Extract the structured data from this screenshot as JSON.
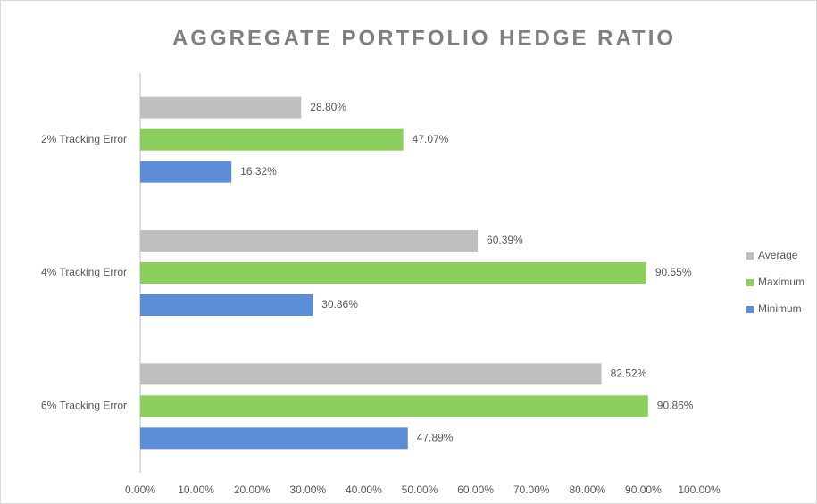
{
  "chart_data": {
    "type": "bar",
    "orientation": "horizontal",
    "title": "AGGREGATE PORTFOLIO HEDGE RATIO",
    "categories": [
      "2% Tracking Error",
      "4% Tracking Error",
      "6% Tracking Error"
    ],
    "series": [
      {
        "name": "Average",
        "color": "#bfbfbf",
        "values": [
          28.8,
          60.39,
          82.52
        ],
        "value_labels": [
          "28.80%",
          "60.39%",
          "82.52%"
        ]
      },
      {
        "name": "Maximum",
        "color": "#8ccf5c",
        "values": [
          47.07,
          90.55,
          90.86
        ],
        "value_labels": [
          "47.07%",
          "90.55%",
          "90.86%"
        ]
      },
      {
        "name": "Minimum",
        "color": "#5b8ed6",
        "values": [
          16.32,
          30.86,
          47.89
        ],
        "value_labels": [
          "16.32%",
          "30.86%",
          "47.89%"
        ]
      }
    ],
    "xlim": [
      0,
      100
    ],
    "xticks": [
      {
        "value": 0,
        "label": "0.00%"
      },
      {
        "value": 10,
        "label": "10.00%"
      },
      {
        "value": 20,
        "label": "20.00%"
      },
      {
        "value": 30,
        "label": "30.00%"
      },
      {
        "value": 40,
        "label": "40.00%"
      },
      {
        "value": 50,
        "label": "50.00%"
      },
      {
        "value": 60,
        "label": "60.00%"
      },
      {
        "value": 70,
        "label": "70.00%"
      },
      {
        "value": 80,
        "label": "80.00%"
      },
      {
        "value": 90,
        "label": "90.00%"
      },
      {
        "value": 100,
        "label": "100.00%"
      }
    ],
    "grid": false,
    "legend": "right"
  }
}
